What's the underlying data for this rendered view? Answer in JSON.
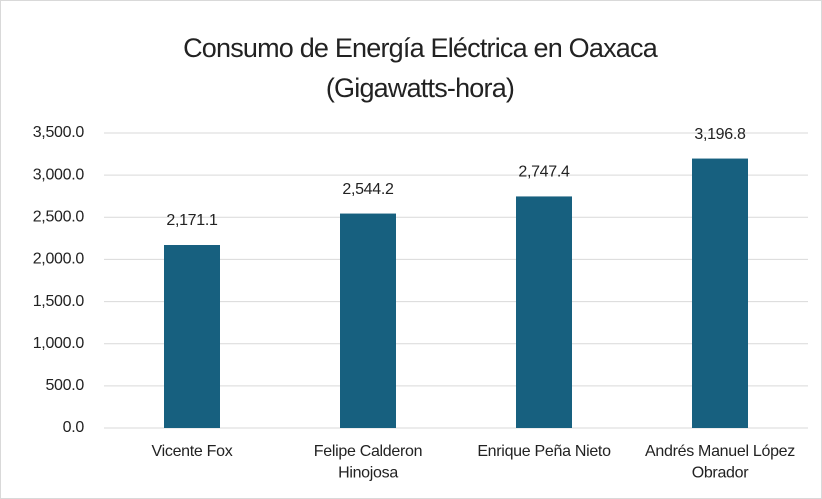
{
  "chart_data": {
    "type": "bar",
    "title": [
      "Consumo de Energía Eléctrica en Oaxaca",
      "(Gigawatts-hora)"
    ],
    "categories": [
      "Vicente Fox",
      "Felipe Calderon Hinojosa",
      "Enrique Peña Nieto",
      "Andrés Manuel López Obrador"
    ],
    "values": [
      2171.1,
      2544.2,
      2747.4,
      3196.8
    ],
    "value_labels": [
      "2,171.1",
      "2,544.2",
      "2,747.4",
      "3,196.8"
    ],
    "color": "#17607f",
    "ylim": [
      0,
      3500
    ],
    "yticks": [
      {
        "value": 0,
        "label": "0.0"
      },
      {
        "value": 500,
        "label": "500.0"
      },
      {
        "value": 1000,
        "label": "1,000.0"
      },
      {
        "value": 1500,
        "label": "1,500.0"
      },
      {
        "value": 2000,
        "label": "2,000.0"
      },
      {
        "value": 2500,
        "label": "2,500.0"
      },
      {
        "value": 3000,
        "label": "3,000.0"
      },
      {
        "value": 3500,
        "label": "3,500.0"
      }
    ],
    "grid": true
  }
}
